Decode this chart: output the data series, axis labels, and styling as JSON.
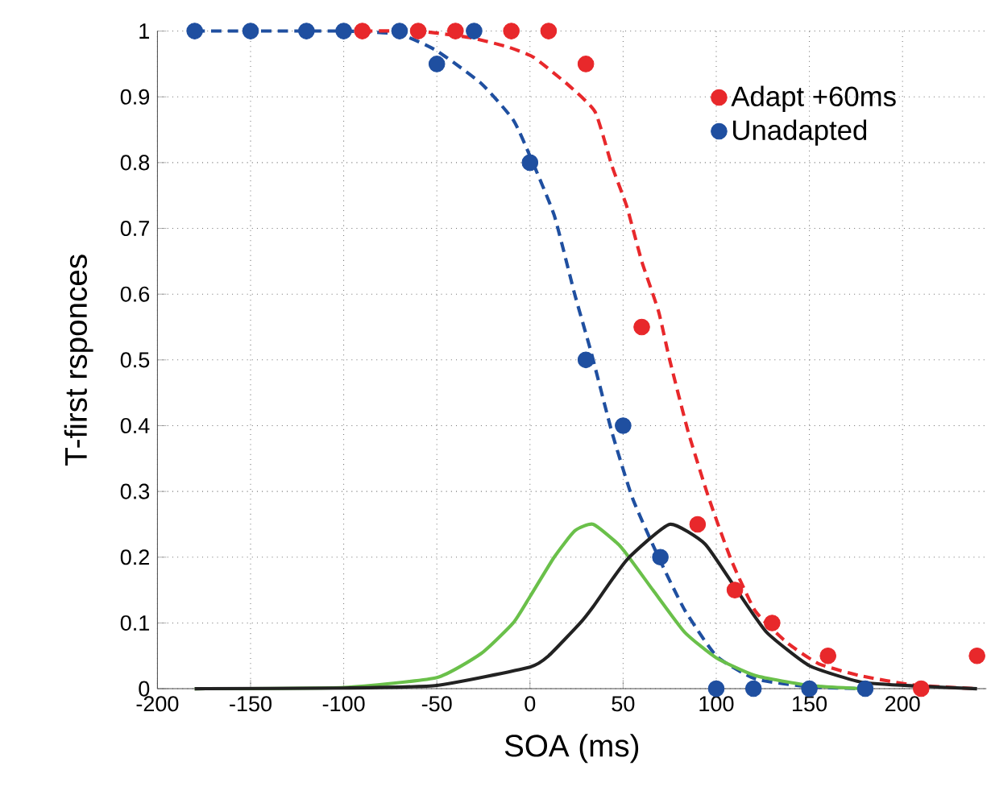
{
  "chart_data": {
    "type": "scatter",
    "xlabel": "SOA (ms)",
    "ylabel": "T-first rsponces",
    "xlim": [
      -200,
      245
    ],
    "ylim": [
      0,
      1
    ],
    "xticks": [
      -200,
      -150,
      -100,
      -50,
      0,
      50,
      100,
      150,
      200
    ],
    "yticks": [
      0,
      0.1,
      0.2,
      0.3,
      0.4,
      0.5,
      0.6,
      0.7,
      0.8,
      0.9,
      1
    ],
    "grid": true,
    "legend": "top right",
    "series": [
      {
        "type": "line",
        "marker": "none",
        "line_style": "dashed",
        "color": "#1f4fa0",
        "x": [
          -180,
          -100,
          -70,
          -50,
          -26,
          -9,
          0,
          13,
          24,
          33,
          44,
          55,
          69,
          83,
          100,
          121,
          150,
          180
        ],
        "values": [
          1,
          1,
          0.995,
          0.97,
          0.92,
          0.865,
          0.81,
          0.72,
          0.6,
          0.51,
          0.39,
          0.29,
          0.2,
          0.12,
          0.05,
          0.015,
          0.003,
          0
        ]
      },
      {
        "type": "line",
        "marker": "none",
        "line_style": "dashed",
        "color": "#e8282b",
        "x": [
          -90,
          -60,
          -32,
          -12,
          2,
          21,
          35,
          44,
          52,
          60,
          69,
          75,
          85,
          96,
          108,
          121,
          138,
          155,
          177,
          205,
          240
        ],
        "values": [
          1,
          1,
          0.99,
          0.976,
          0.96,
          0.917,
          0.877,
          0.795,
          0.733,
          0.65,
          0.574,
          0.5,
          0.39,
          0.29,
          0.196,
          0.118,
          0.07,
          0.038,
          0.02,
          0.006,
          0
        ]
      },
      {
        "type": "line",
        "marker": "none",
        "line_style": "solid",
        "color": "#6ac04a",
        "x": [
          -180,
          -100,
          -50,
          -26,
          -9,
          0,
          13,
          24,
          34,
          49,
          66,
          83,
          100,
          121,
          150,
          180
        ],
        "values": [
          0,
          0.002,
          0.017,
          0.054,
          0.1,
          0.14,
          0.2,
          0.24,
          0.25,
          0.215,
          0.15,
          0.086,
          0.047,
          0.02,
          0.005,
          0
        ]
      },
      {
        "type": "line",
        "marker": "none",
        "line_style": "solid",
        "color": "#222222",
        "x": [
          -180,
          -100,
          -50,
          0,
          10,
          27,
          34,
          52,
          75,
          94,
          111,
          127,
          150,
          178,
          208,
          240
        ],
        "values": [
          0,
          0.001,
          0.005,
          0.033,
          0.05,
          0.1,
          0.125,
          0.196,
          0.25,
          0.22,
          0.15,
          0.086,
          0.035,
          0.01,
          0.004,
          0
        ]
      },
      {
        "name": "Adapt +60ms",
        "type": "scatter",
        "marker": "circle",
        "color": "#e8282b",
        "x": [
          -90,
          -60,
          -40,
          -10,
          10,
          30,
          60,
          90,
          110,
          130,
          160,
          210,
          240
        ],
        "values": [
          1,
          1,
          1,
          1,
          1,
          0.95,
          0.55,
          0.25,
          0.15,
          0.1,
          0.05,
          0,
          0.05
        ]
      },
      {
        "name": "Unadapted",
        "type": "scatter",
        "marker": "circle",
        "color": "#1f4fa0",
        "x": [
          -180,
          -150,
          -120,
          -100,
          -70,
          -50,
          -30,
          0,
          30,
          50,
          70,
          100,
          120,
          150,
          180
        ],
        "values": [
          1,
          1,
          1,
          1,
          1,
          0.95,
          1,
          0.8,
          0.5,
          0.4,
          0.2,
          0,
          0,
          0,
          0
        ]
      }
    ]
  }
}
